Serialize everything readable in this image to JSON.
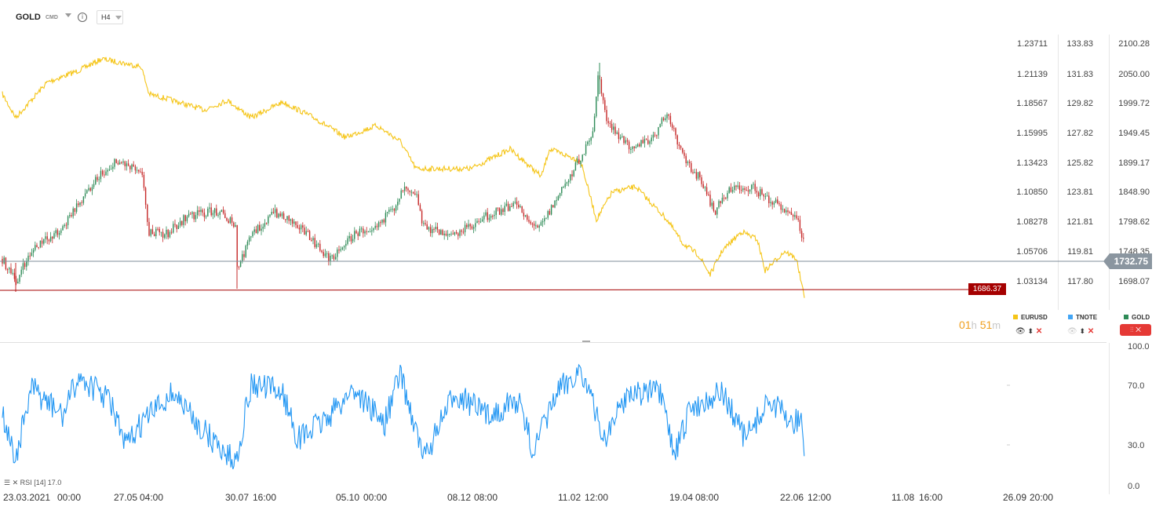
{
  "toolbar": {
    "symbol": "GOLD",
    "instrument_type": "CMD",
    "info_icon": "info-icon",
    "timeframe": "H4"
  },
  "price_axes": {
    "eurusd": [
      "1.23711",
      "1.21139",
      "1.18567",
      "1.15995",
      "1.13423",
      "1.10850",
      "1.08278",
      "1.05706",
      "1.03134"
    ],
    "tnote": [
      "133.83",
      "131.83",
      "129.82",
      "127.82",
      "125.82",
      "123.81",
      "121.81",
      "119.81",
      "117.80"
    ],
    "gold": [
      "2100.28",
      "2050.00",
      "1999.72",
      "1949.45",
      "1899.17",
      "1848.90",
      "1798.62",
      "1748.35",
      "1698.07"
    ]
  },
  "current_price": "1732.75",
  "level_tag": "1686.37",
  "countdown": {
    "hours": "01",
    "h": "h",
    "minutes": "51",
    "m": "m"
  },
  "legend": [
    {
      "name": "EURUSD",
      "color": "#f5c518"
    },
    {
      "name": "TNOTE",
      "color": "#42a5f5"
    },
    {
      "name": "GOLD",
      "color": "#2e8b57"
    }
  ],
  "rsi": {
    "label": "RSI",
    "period": "[14]",
    "value": "17.0",
    "axis": [
      "100.0",
      "70.0",
      "30.0",
      "0.0"
    ]
  },
  "dates": [
    "23.03.2021",
    "00:00",
    "27.05",
    "04:00",
    "30.07",
    "16:00",
    "05.10",
    "00:00",
    "08.12",
    "08:00",
    "11.02",
    "12:00",
    "19.04",
    "08:00",
    "22.06",
    "12:00",
    "11.08",
    "16:00",
    "26.09",
    "20:00"
  ],
  "colors": {
    "eurusd_line": "#f5c518",
    "rsi_line": "#2196f3",
    "candle_up": "#2e8b57",
    "candle_down": "#c62828",
    "level_line": "#a50000",
    "price_line": "#7f8c99",
    "close_button": "#e53935"
  }
}
